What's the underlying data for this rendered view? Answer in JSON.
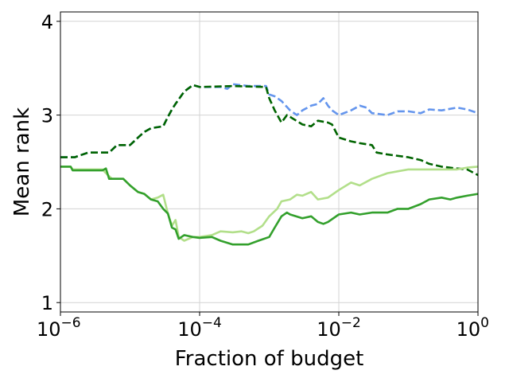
{
  "chart_data": {
    "type": "line",
    "xlabel": "Fraction of budget",
    "ylabel": "Mean rank",
    "xscale": "log",
    "xlim": [
      1e-06,
      1
    ],
    "ylim": [
      0.9,
      4.1
    ],
    "grid": true,
    "x_ticks": [
      {
        "value": 1e-06,
        "base": "10",
        "exp": "−6"
      },
      {
        "value": 0.0001,
        "base": "10",
        "exp": "−4"
      },
      {
        "value": 0.01,
        "base": "10",
        "exp": "−2"
      },
      {
        "value": 1,
        "base": "10",
        "exp": "0"
      }
    ],
    "y_ticks": [
      {
        "value": 1,
        "label": "1"
      },
      {
        "value": 2,
        "label": "2"
      },
      {
        "value": 3,
        "label": "3"
      },
      {
        "value": 4,
        "label": "4"
      }
    ],
    "series": [
      {
        "color": "#6495ed",
        "dash": "dashed",
        "points": [
          [
            1e-06,
            2.55
          ],
          [
            1.6e-06,
            2.55
          ],
          [
            2.5e-06,
            2.6
          ],
          [
            5e-06,
            2.6
          ],
          [
            6.5e-06,
            2.68
          ],
          [
            1e-05,
            2.68
          ],
          [
            1.3e-05,
            2.76
          ],
          [
            1.6e-05,
            2.82
          ],
          [
            2e-05,
            2.86
          ],
          [
            3e-05,
            2.88
          ],
          [
            3.5e-05,
            2.98
          ],
          [
            4e-05,
            3.06
          ],
          [
            4.5e-05,
            3.12
          ],
          [
            6e-05,
            3.25
          ],
          [
            8e-05,
            3.32
          ],
          [
            0.0001,
            3.3
          ],
          [
            0.0002,
            3.3
          ],
          [
            0.00025,
            3.28
          ],
          [
            0.0003,
            3.33
          ],
          [
            0.0005,
            3.31
          ],
          [
            0.0009,
            3.31
          ],
          [
            0.001,
            3.22
          ],
          [
            0.0012,
            3.2
          ],
          [
            0.0015,
            3.15
          ],
          [
            0.002,
            3.05
          ],
          [
            0.0025,
            3.0
          ],
          [
            0.003,
            3.05
          ],
          [
            0.004,
            3.1
          ],
          [
            0.005,
            3.12
          ],
          [
            0.006,
            3.18
          ],
          [
            0.007,
            3.1
          ],
          [
            0.008,
            3.05
          ],
          [
            0.01,
            3.0
          ],
          [
            0.015,
            3.05
          ],
          [
            0.02,
            3.1
          ],
          [
            0.025,
            3.08
          ],
          [
            0.03,
            3.02
          ],
          [
            0.05,
            3.0
          ],
          [
            0.07,
            3.04
          ],
          [
            0.1,
            3.04
          ],
          [
            0.15,
            3.02
          ],
          [
            0.2,
            3.06
          ],
          [
            0.3,
            3.05
          ],
          [
            0.5,
            3.08
          ],
          [
            0.7,
            3.06
          ],
          [
            1,
            3.02
          ]
        ]
      },
      {
        "color": "#006400",
        "dash": "dashed",
        "points": [
          [
            1e-06,
            2.55
          ],
          [
            1.6e-06,
            2.55
          ],
          [
            2.5e-06,
            2.6
          ],
          [
            5e-06,
            2.6
          ],
          [
            6.5e-06,
            2.68
          ],
          [
            1e-05,
            2.68
          ],
          [
            1.3e-05,
            2.76
          ],
          [
            1.6e-05,
            2.82
          ],
          [
            2e-05,
            2.86
          ],
          [
            3e-05,
            2.88
          ],
          [
            3.5e-05,
            2.98
          ],
          [
            4e-05,
            3.06
          ],
          [
            4.5e-05,
            3.12
          ],
          [
            6e-05,
            3.25
          ],
          [
            8e-05,
            3.32
          ],
          [
            0.0001,
            3.3
          ],
          [
            0.0003,
            3.31
          ],
          [
            0.0009,
            3.3
          ],
          [
            0.001,
            3.18
          ],
          [
            0.0012,
            3.05
          ],
          [
            0.0015,
            2.92
          ],
          [
            0.0018,
            3.0
          ],
          [
            0.002,
            2.98
          ],
          [
            0.003,
            2.9
          ],
          [
            0.004,
            2.88
          ],
          [
            0.005,
            2.94
          ],
          [
            0.007,
            2.92
          ],
          [
            0.008,
            2.9
          ],
          [
            0.01,
            2.76
          ],
          [
            0.015,
            2.72
          ],
          [
            0.02,
            2.7
          ],
          [
            0.03,
            2.68
          ],
          [
            0.035,
            2.6
          ],
          [
            0.05,
            2.58
          ],
          [
            0.1,
            2.55
          ],
          [
            0.15,
            2.52
          ],
          [
            0.2,
            2.48
          ],
          [
            0.3,
            2.45
          ],
          [
            0.5,
            2.43
          ],
          [
            0.7,
            2.42
          ],
          [
            1,
            2.36
          ]
        ]
      },
      {
        "color": "#b2df8a",
        "dash": "solid",
        "points": [
          [
            1e-06,
            2.45
          ],
          [
            1.4e-06,
            2.45
          ],
          [
            1.5e-06,
            2.42
          ],
          [
            4e-06,
            2.42
          ],
          [
            4.5e-06,
            2.38
          ],
          [
            5.5e-06,
            2.32
          ],
          [
            8e-06,
            2.32
          ],
          [
            1e-05,
            2.25
          ],
          [
            1.3e-05,
            2.18
          ],
          [
            1.6e-05,
            2.16
          ],
          [
            2e-05,
            2.1
          ],
          [
            2.5e-05,
            2.12
          ],
          [
            3e-05,
            2.15
          ],
          [
            3.5e-05,
            1.95
          ],
          [
            4e-05,
            1.82
          ],
          [
            4.5e-05,
            1.88
          ],
          [
            5e-05,
            1.7
          ],
          [
            6e-05,
            1.66
          ],
          [
            8e-05,
            1.7
          ],
          [
            0.0001,
            1.7
          ],
          [
            0.00015,
            1.72
          ],
          [
            0.0002,
            1.76
          ],
          [
            0.0003,
            1.75
          ],
          [
            0.0004,
            1.76
          ],
          [
            0.0005,
            1.74
          ],
          [
            0.0006,
            1.76
          ],
          [
            0.0008,
            1.82
          ],
          [
            0.001,
            1.92
          ],
          [
            0.0013,
            2.0
          ],
          [
            0.0015,
            2.08
          ],
          [
            0.002,
            2.1
          ],
          [
            0.0025,
            2.15
          ],
          [
            0.003,
            2.14
          ],
          [
            0.004,
            2.18
          ],
          [
            0.005,
            2.1
          ],
          [
            0.007,
            2.12
          ],
          [
            0.01,
            2.2
          ],
          [
            0.015,
            2.28
          ],
          [
            0.02,
            2.25
          ],
          [
            0.03,
            2.32
          ],
          [
            0.05,
            2.38
          ],
          [
            0.07,
            2.4
          ],
          [
            0.1,
            2.42
          ],
          [
            0.2,
            2.42
          ],
          [
            0.5,
            2.42
          ],
          [
            0.7,
            2.44
          ],
          [
            1,
            2.45
          ]
        ]
      },
      {
        "color": "#33a02c",
        "dash": "solid",
        "points": [
          [
            1e-06,
            2.45
          ],
          [
            1.4e-06,
            2.45
          ],
          [
            1.5e-06,
            2.41
          ],
          [
            4e-06,
            2.41
          ],
          [
            4.5e-06,
            2.43
          ],
          [
            5e-06,
            2.32
          ],
          [
            8e-06,
            2.32
          ],
          [
            1e-05,
            2.25
          ],
          [
            1.3e-05,
            2.18
          ],
          [
            1.6e-05,
            2.16
          ],
          [
            2e-05,
            2.1
          ],
          [
            2.5e-05,
            2.08
          ],
          [
            3e-05,
            2.0
          ],
          [
            3.5e-05,
            1.95
          ],
          [
            4e-05,
            1.8
          ],
          [
            4.5e-05,
            1.78
          ],
          [
            5e-05,
            1.68
          ],
          [
            6e-05,
            1.72
          ],
          [
            8e-05,
            1.7
          ],
          [
            0.0001,
            1.69
          ],
          [
            0.00015,
            1.7
          ],
          [
            0.0002,
            1.66
          ],
          [
            0.0003,
            1.62
          ],
          [
            0.0005,
            1.62
          ],
          [
            0.0007,
            1.66
          ],
          [
            0.001,
            1.7
          ],
          [
            0.0012,
            1.8
          ],
          [
            0.0015,
            1.92
          ],
          [
            0.0018,
            1.96
          ],
          [
            0.002,
            1.94
          ],
          [
            0.003,
            1.9
          ],
          [
            0.004,
            1.92
          ],
          [
            0.005,
            1.86
          ],
          [
            0.006,
            1.84
          ],
          [
            0.007,
            1.86
          ],
          [
            0.01,
            1.94
          ],
          [
            0.015,
            1.96
          ],
          [
            0.02,
            1.94
          ],
          [
            0.03,
            1.96
          ],
          [
            0.05,
            1.96
          ],
          [
            0.07,
            2.0
          ],
          [
            0.1,
            2.0
          ],
          [
            0.15,
            2.05
          ],
          [
            0.2,
            2.1
          ],
          [
            0.3,
            2.12
          ],
          [
            0.4,
            2.1
          ],
          [
            0.5,
            2.12
          ],
          [
            0.7,
            2.14
          ],
          [
            1,
            2.16
          ]
        ]
      }
    ]
  }
}
